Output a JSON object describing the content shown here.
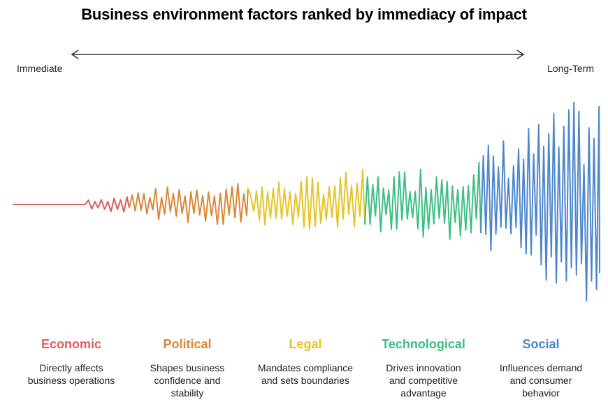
{
  "title": "Business environment factors ranked by immediacy of impact",
  "axis": {
    "left_label": "Immediate",
    "right_label": "Long-Term"
  },
  "factors": [
    {
      "name": "Economic",
      "description": "Directly affects business operations",
      "color": "#d9605a"
    },
    {
      "name": "Political",
      "description": "Shapes business confidence and stability",
      "color": "#d98838"
    },
    {
      "name": "Legal",
      "description": "Mandates compliance and sets boundaries",
      "color": "#e3c52b"
    },
    {
      "name": "Technological",
      "description": "Drives innovation and competitive advantage",
      "color": "#3dbf82"
    },
    {
      "name": "Social",
      "description": "Influences demand and consumer behavior",
      "color": "#4d86cf"
    }
  ]
}
